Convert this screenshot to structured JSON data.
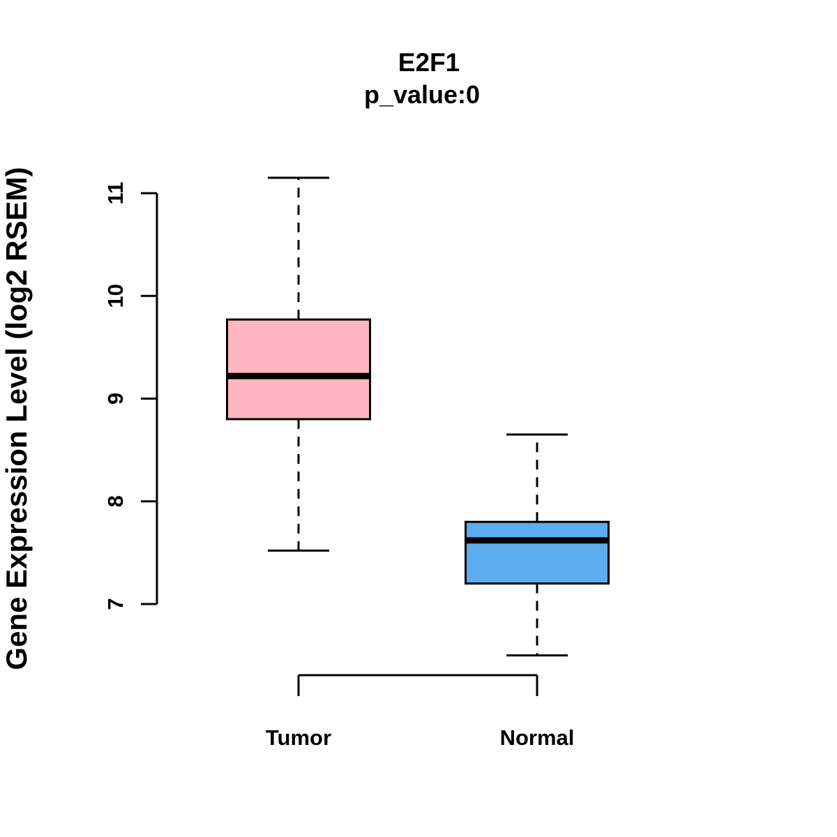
{
  "chart_data": {
    "type": "boxplot",
    "title": "E2F1",
    "subtitle": "p_value:0",
    "ylabel": "Gene Expression Level (log2 RSEM)",
    "xlabel": "",
    "categories": [
      "Tumor",
      "Normal"
    ],
    "series": [
      {
        "name": "Tumor",
        "color": "#FFB6C1",
        "lower_whisker": 7.52,
        "q1": 8.8,
        "median": 9.22,
        "q3": 9.77,
        "upper_whisker": 11.15
      },
      {
        "name": "Normal",
        "color": "#5CACEE",
        "lower_whisker": 6.5,
        "q1": 7.2,
        "median": 7.62,
        "q3": 7.8,
        "upper_whisker": 8.65
      }
    ],
    "yticks": [
      7,
      8,
      9,
      10,
      11
    ],
    "ylim": [
      6.3,
      11.3
    ],
    "grid": false,
    "legend": "none",
    "box_border_color": "#000000",
    "median_color": "#000000",
    "whisker_style": "dashed"
  }
}
